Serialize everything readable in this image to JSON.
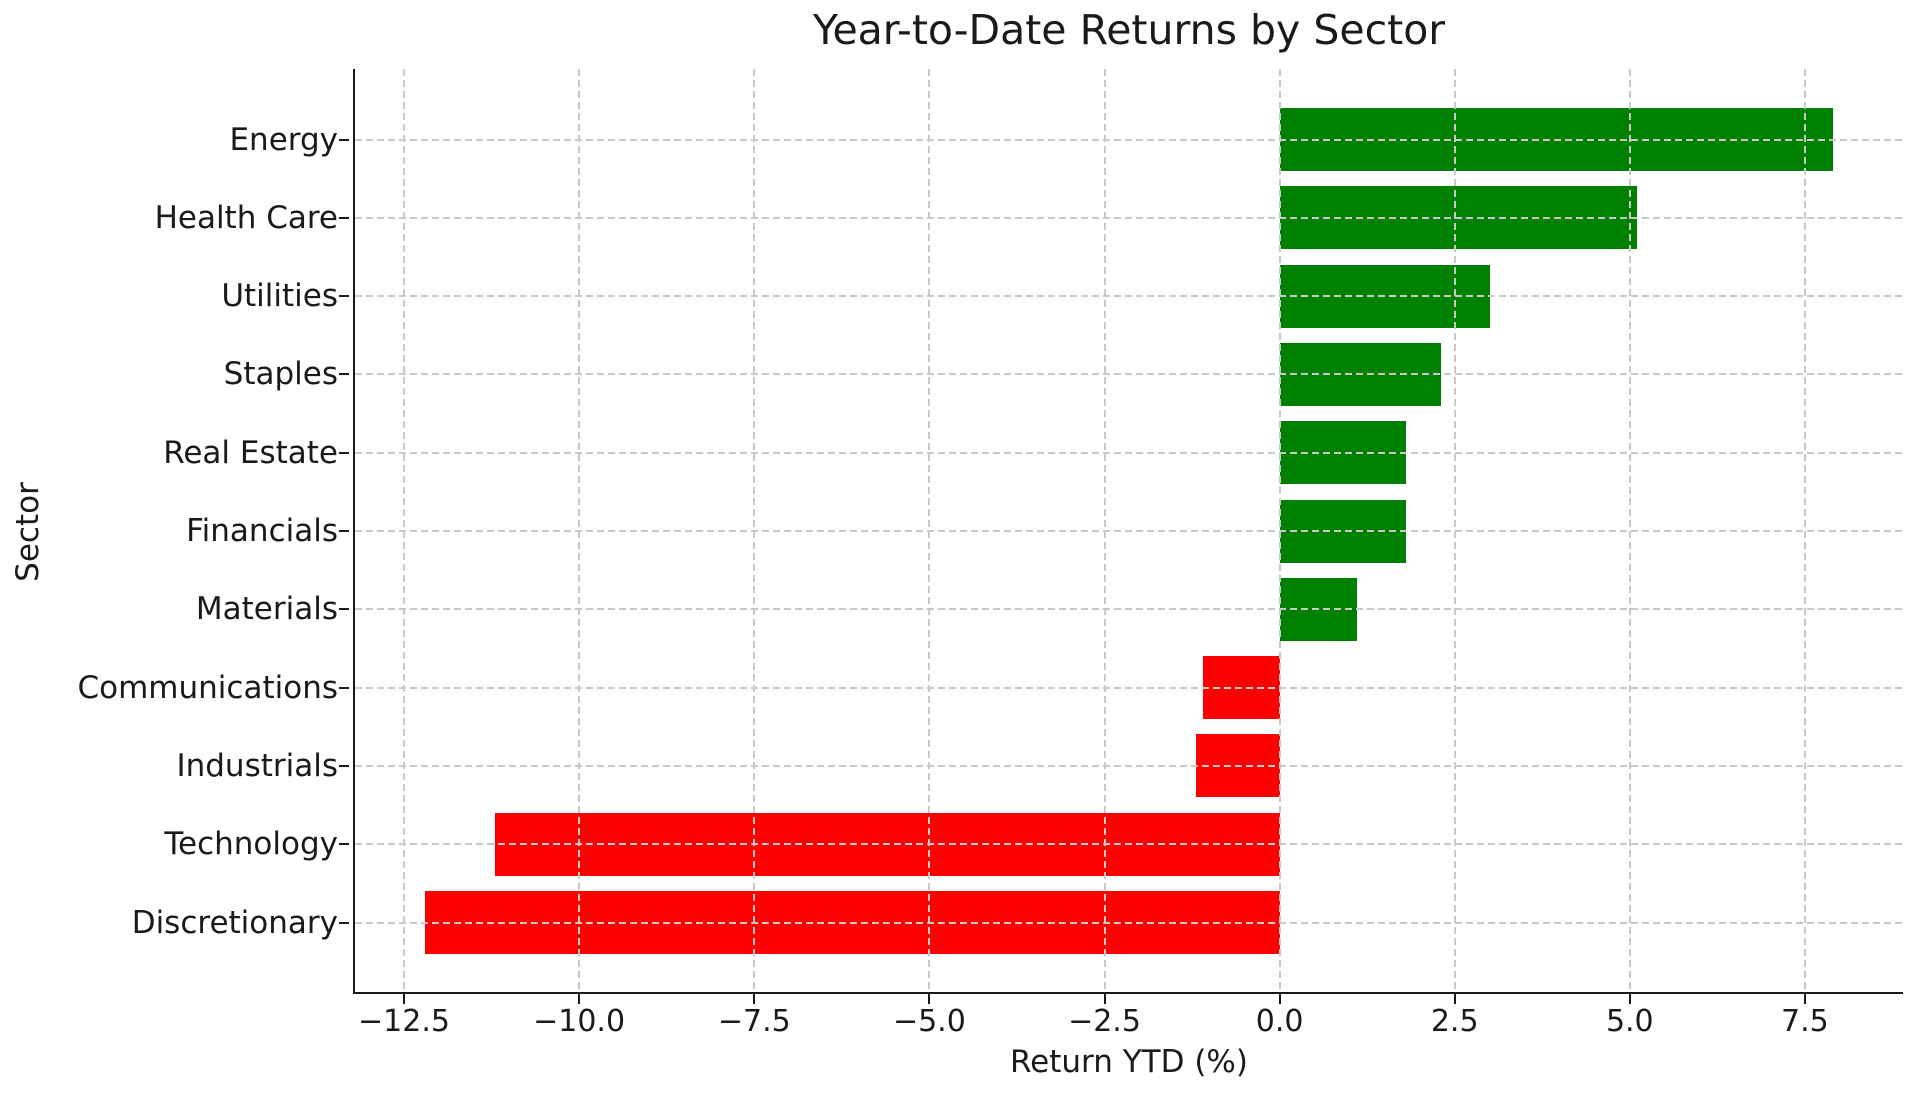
{
  "chart_data": {
    "type": "bar",
    "orientation": "horizontal",
    "title": "Year-to-Date Returns by Sector",
    "xlabel": "Return YTD (%)",
    "ylabel": "Sector",
    "categories": [
      "Energy",
      "Health Care",
      "Utilities",
      "Staples",
      "Real Estate",
      "Financials",
      "Materials",
      "Communications",
      "Industrials",
      "Technology",
      "Discretionary"
    ],
    "values": [
      7.9,
      5.1,
      3.0,
      2.3,
      1.8,
      1.8,
      1.1,
      -1.1,
      -1.2,
      -11.2,
      -12.2
    ],
    "xlim": [
      -13.2,
      8.9
    ],
    "xticks": [
      -12.5,
      -10.0,
      -7.5,
      -5.0,
      -2.5,
      0.0,
      2.5,
      5.0,
      7.5
    ],
    "xtick_labels": [
      "−12.5",
      "−10.0",
      "−7.5",
      "−5.0",
      "−2.5",
      "0.0",
      "2.5",
      "5.0",
      "7.5"
    ],
    "grid": true,
    "grid_style": "dashed",
    "grid_above_bars": true,
    "legend": "none",
    "positive_color": "#008000",
    "negative_color": "#ff0000",
    "grid_color": "#c9c9c9",
    "axis_color": "#1a1a1a",
    "background": "#ffffff"
  }
}
